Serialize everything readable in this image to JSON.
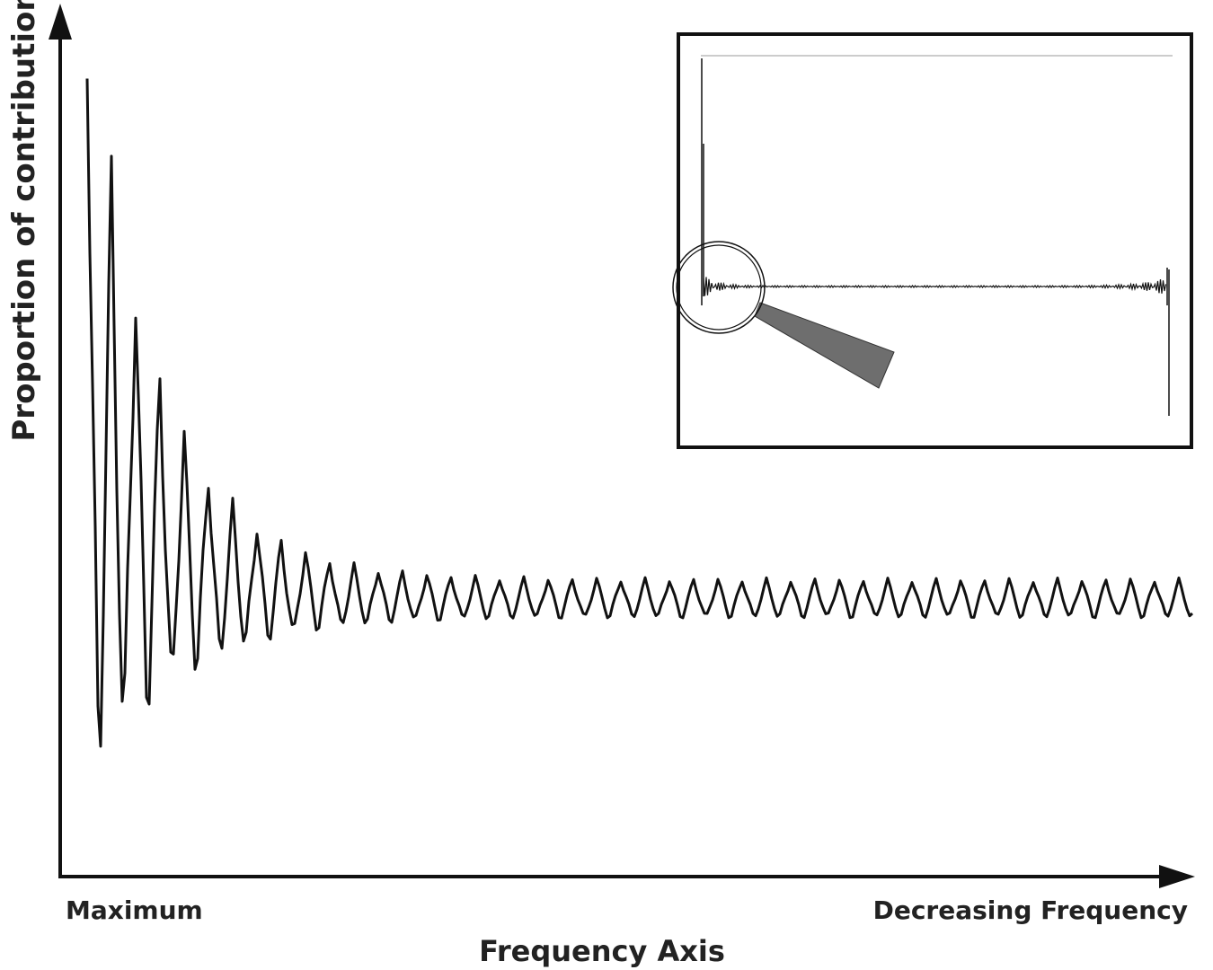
{
  "axes": {
    "y_label": "Proportion of contribution",
    "x_label": "Frequency Axis",
    "x_start": "Maximum",
    "x_end": "Decreasing Frequency"
  }
}
